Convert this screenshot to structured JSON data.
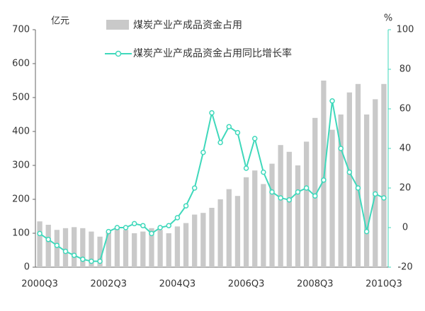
{
  "chart_data": {
    "type": "bar_line",
    "y_label": "亿元",
    "y2_label": "%",
    "categories": [
      "2000Q3",
      null,
      null,
      null,
      null,
      null,
      null,
      null,
      "2002Q3",
      null,
      null,
      null,
      null,
      null,
      null,
      null,
      "2004Q3",
      null,
      null,
      null,
      null,
      null,
      null,
      null,
      "2006Q3",
      null,
      null,
      null,
      null,
      null,
      null,
      null,
      "2008Q3",
      null,
      null,
      null,
      null,
      null,
      null,
      null,
      "2010Q3"
    ],
    "series": [
      {
        "name": "煤炭产业产成品资金占用",
        "type": "bar",
        "color": "#c9c9c9",
        "values": [
          135,
          125,
          110,
          115,
          118,
          115,
          105,
          90,
          105,
          115,
          110,
          100,
          105,
          115,
          110,
          100,
          120,
          130,
          155,
          160,
          175,
          200,
          230,
          210,
          265,
          285,
          245,
          305,
          360,
          340,
          300,
          370,
          440,
          550,
          405,
          450,
          515,
          540,
          450,
          495,
          540
        ]
      },
      {
        "name": "煤炭产业产成品资金占用同比增长率",
        "type": "line",
        "color": "#3fd8bb",
        "axis": "y2",
        "values": [
          -3,
          -6,
          -9,
          -12,
          -14,
          -16,
          -17,
          -17,
          -2,
          0,
          0,
          2,
          1,
          -3,
          0,
          1,
          5,
          11,
          20,
          38,
          58,
          43,
          51,
          48,
          30,
          45,
          28,
          18,
          15,
          14,
          18,
          20,
          16,
          24,
          64,
          40,
          28,
          20,
          -2,
          17,
          15
        ]
      }
    ],
    "ylim": [
      0,
      700
    ],
    "yticks": [
      0,
      100,
      200,
      300,
      400,
      500,
      600,
      700
    ],
    "y2lim": [
      -20,
      100
    ],
    "y2ticks": [
      -20,
      0,
      20,
      40,
      60,
      80,
      100
    ]
  }
}
